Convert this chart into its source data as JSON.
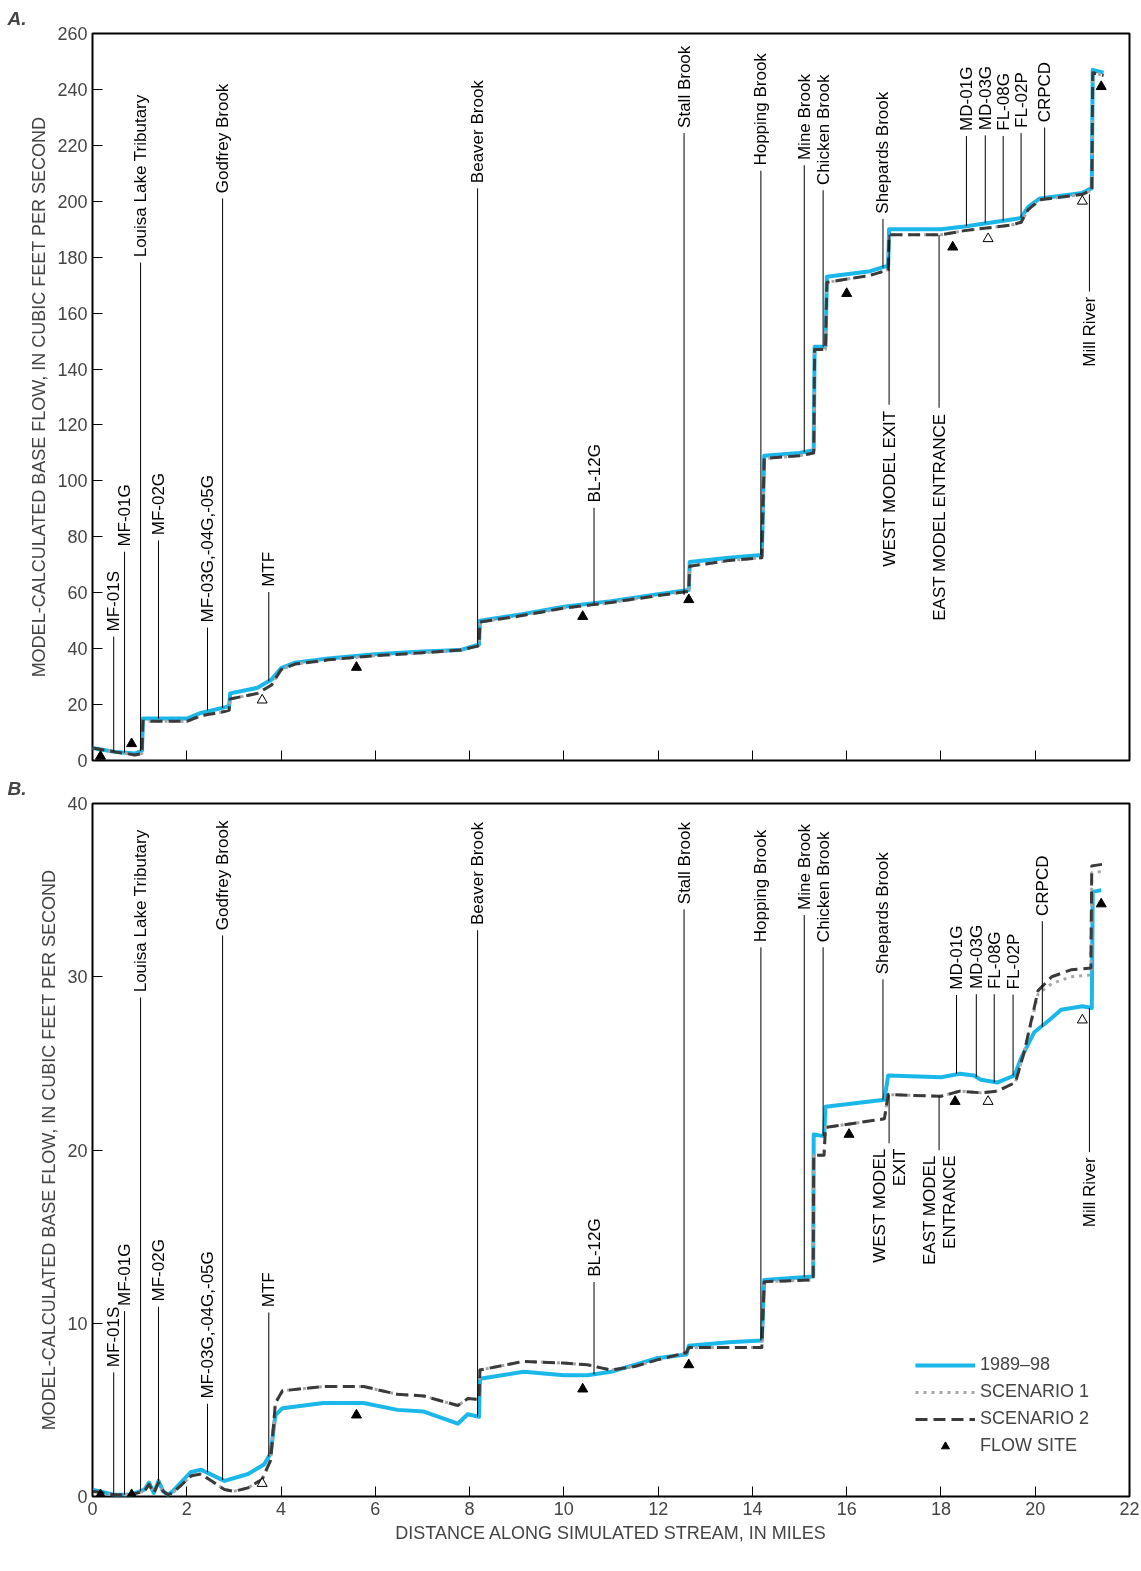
{
  "chart_data": [
    {
      "type": "line",
      "title": "A.",
      "ylabel": "MODEL-CALCULATED BASE FLOW, IN CUBIC FEET PER SECOND",
      "xlim": [
        0,
        22
      ],
      "xticks": [
        0,
        2,
        4,
        6,
        8,
        10,
        12,
        14,
        16,
        18,
        20,
        22
      ],
      "ylim": [
        0,
        260
      ],
      "yticks": [
        0,
        20,
        40,
        60,
        80,
        100,
        120,
        140,
        160,
        180,
        200,
        220,
        240,
        260
      ],
      "tick_labels": "y",
      "legend": false,
      "series": [
        {
          "color": "#1ab7ea",
          "line_style": "solid",
          "x": [
            0,
            0.5,
            0.9,
            1.05,
            1.07,
            2.0,
            2.3,
            2.8,
            2.9,
            2.92,
            3.5,
            3.8,
            4.0,
            4.3,
            5,
            6,
            7,
            7.8,
            8.2,
            8.22,
            9,
            10,
            11,
            12,
            12.65,
            12.67,
            13.5,
            14.2,
            14.25,
            15,
            15.3,
            15.32,
            15.55,
            15.58,
            16.5,
            16.88,
            16.9,
            18,
            18.5,
            19.5,
            19.7,
            19.85,
            20.1,
            21,
            21.2,
            21.22,
            21.45
          ],
          "values": [
            4.5,
            3,
            2.5,
            3.5,
            15,
            15,
            17,
            19,
            19.5,
            24,
            26,
            29,
            33,
            35,
            36.5,
            38,
            39,
            39.5,
            41.5,
            50,
            52,
            55,
            57,
            59.5,
            61,
            71,
            72.5,
            73.5,
            109,
            110,
            111,
            148,
            148,
            173,
            175,
            177,
            190,
            190,
            191,
            193.5,
            194,
            198,
            201,
            203,
            204.7,
            247,
            246
          ]
        },
        {
          "color": "#a6a6a6",
          "line_style": "dotted",
          "x": [
            0,
            0.5,
            0.9,
            1.05,
            1.07,
            2.0,
            2.3,
            2.8,
            2.9,
            2.92,
            3.5,
            3.8,
            4.0,
            4.3,
            5,
            6,
            7,
            7.8,
            8.2,
            8.22,
            9,
            10,
            11,
            12,
            12.65,
            12.67,
            13.5,
            14.2,
            14.25,
            15,
            15.3,
            15.32,
            15.55,
            15.58,
            16.5,
            16.88,
            16.9,
            18,
            18.5,
            19.5,
            19.7,
            19.85,
            20.1,
            21,
            21.2,
            21.22,
            21.45
          ],
          "values": [
            4.5,
            3,
            2.0,
            2.5,
            14,
            14,
            16,
            17.5,
            18,
            22,
            24,
            27,
            32.5,
            34.5,
            36,
            37.5,
            38.5,
            39.5,
            41,
            49.5,
            51.5,
            54.5,
            56.5,
            59,
            60.5,
            69.5,
            71.5,
            72.5,
            108,
            109,
            110,
            147,
            147,
            171,
            173.5,
            175.5,
            188,
            188,
            189.5,
            191.5,
            192.5,
            197,
            200.5,
            202.5,
            204,
            246,
            245
          ]
        },
        {
          "color": "#3a3a3a",
          "line_style": "dashed",
          "x": [
            0,
            0.5,
            0.9,
            1.05,
            1.07,
            2.0,
            2.3,
            2.8,
            2.9,
            2.92,
            3.5,
            3.8,
            4.0,
            4.3,
            5,
            6,
            7,
            7.8,
            8.2,
            8.22,
            9,
            10,
            11,
            12,
            12.65,
            12.67,
            13.5,
            14.2,
            14.25,
            15,
            15.3,
            15.32,
            15.55,
            15.58,
            16.5,
            16.88,
            16.9,
            18,
            18.5,
            19.5,
            19.7,
            19.85,
            20.1,
            21,
            21.2,
            21.22,
            21.45
          ],
          "values": [
            4.5,
            3,
            2.0,
            2.5,
            14,
            14,
            16,
            17.5,
            18,
            22,
            24,
            27,
            32.5,
            34.5,
            36,
            37.5,
            38.5,
            39.5,
            41,
            49.5,
            51.5,
            54.5,
            56.5,
            59,
            60.5,
            69.5,
            71.5,
            72.5,
            108,
            109,
            110,
            147,
            147,
            171,
            173.5,
            175.5,
            188,
            188,
            189.5,
            191.5,
            192.5,
            197,
            200.5,
            202.5,
            204,
            246,
            245
          ]
        },
        {
          "type": "scatter",
          "marker": "triangle",
          "colors": [
            "#000000",
            "#000000",
            "#ffffff",
            "#000000",
            "#000000",
            "#000000",
            "#000000",
            "#000000",
            "#ffffff",
            "#ffffff",
            "#000000"
          ],
          "x": [
            0.17,
            0.83,
            3.6,
            5.6,
            10.4,
            12.65,
            16.0,
            18.25,
            19.0,
            21.0,
            21.4
          ],
          "values": [
            1.5,
            6,
            21.6,
            33.3,
            51.5,
            57.5,
            167,
            183.6,
            186.6,
            200,
            241
          ]
        }
      ],
      "annotations": [
        {
          "text": "MF-01S",
          "x": 0.45,
          "y": 3.2
        },
        {
          "text": "MF-01G",
          "x": 0.68,
          "y": 2.8
        },
        {
          "text": "Louisa Lake Tributary",
          "x": 1.02,
          "y": 3.3
        },
        {
          "text": "MF-02G",
          "x": 1.4,
          "y": 15
        },
        {
          "text": "MF-03G,-04G,-05G",
          "x": 2.44,
          "y": 17.9
        },
        {
          "text": "Godfrey Brook",
          "x": 2.76,
          "y": 18.8
        },
        {
          "text": "MTF",
          "x": 3.74,
          "y": 28.4
        },
        {
          "text": "Beaver Brook",
          "x": 8.17,
          "y": 41.3
        },
        {
          "text": "BL-12G",
          "x": 10.64,
          "y": 56.3
        },
        {
          "text": "Stall Brook",
          "x": 12.55,
          "y": 59.2
        },
        {
          "text": "Hopping Brook",
          "x": 14.18,
          "y": 73.5
        },
        {
          "text": "Mine Brook",
          "x": 15.1,
          "y": 110.3
        },
        {
          "text": "Chicken Brook",
          "x": 15.5,
          "y": 148
        },
        {
          "text": "Shepards Brook",
          "x": 16.77,
          "y": 176.3
        },
        {
          "text": "MD-01G",
          "x": 18.54,
          "y": 191.1
        },
        {
          "text": "MD-03G",
          "x": 18.94,
          "y": 192.1
        },
        {
          "text": "FL-08G",
          "x": 19.32,
          "y": 193
        },
        {
          "text": "FL-02P",
          "x": 19.7,
          "y": 194
        },
        {
          "text": "CRPCD",
          "x": 20.2,
          "y": 201.2
        },
        {
          "text": "WEST MODEL EXIT",
          "x": 16.9,
          "y": 188
        },
        {
          "text": "EAST MODEL ENTRANCE",
          "x": 17.96,
          "y": 188
        },
        {
          "text": "Mill River",
          "x": 21.15,
          "y": 202.5
        }
      ]
    },
    {
      "type": "line",
      "title": "B.",
      "xlabel": "DISTANCE ALONG SIMULATED STREAM, IN MILES",
      "ylabel": "MODEL-CALCULATED BASE FLOW, IN CUBIC FEET PER SECOND",
      "xlim": [
        0,
        22
      ],
      "xticks": [
        0,
        2,
        4,
        6,
        8,
        10,
        12,
        14,
        16,
        18,
        20,
        22
      ],
      "ylim": [
        0,
        40
      ],
      "yticks": [
        0,
        10,
        20,
        30,
        40
      ],
      "legend": "bottom right",
      "series": [
        {
          "name": "1989–98",
          "color": "#1ab7ea",
          "line_style": "solid",
          "x": [
            0,
            0.45,
            0.8,
            1.1,
            1.2,
            1.3,
            1.4,
            1.5,
            1.6,
            1.7,
            2.08,
            2.3,
            2.8,
            3.3,
            3.64,
            3.78,
            3.88,
            4.03,
            4.9,
            5.75,
            6.47,
            7.03,
            7.75,
            7.96,
            8.2,
            8.22,
            9.15,
            10,
            10.5,
            11,
            11.5,
            12,
            12.6,
            12.65,
            13.5,
            14.2,
            14.25,
            15.29,
            15.3,
            15.52,
            15.55,
            16.8,
            16.88,
            18.0,
            18.4,
            18.7,
            18.85,
            19.2,
            19.56,
            19.7,
            19.98,
            20.3,
            20.55,
            21.0,
            21.2,
            21.22,
            21.4
          ],
          "values": [
            0.4,
            0.1,
            0.1,
            0.4,
            0.8,
            0.2,
            0.9,
            0.3,
            0.1,
            0.3,
            1.4,
            1.55,
            0.9,
            1.3,
            1.85,
            2.5,
            4.7,
            5.1,
            5.4,
            5.4,
            5.0,
            4.9,
            4.2,
            4.75,
            4.6,
            6.8,
            7.2,
            7.0,
            7.0,
            7.2,
            7.6,
            8.0,
            8.2,
            8.7,
            8.9,
            9.0,
            12.5,
            12.7,
            20.9,
            20.8,
            22.5,
            22.9,
            24.3,
            24.2,
            24.4,
            24.3,
            24.05,
            23.9,
            24.3,
            25.3,
            26.8,
            27.5,
            28.1,
            28.3,
            28.2,
            34.9,
            35.0
          ]
        },
        {
          "name": "SCENARIO 1",
          "color": "#a6a6a6",
          "line_style": "dotted",
          "x": [
            0,
            0.45,
            0.8,
            1.1,
            1.2,
            1.3,
            1.4,
            1.5,
            1.6,
            1.7,
            2.1,
            2.3,
            2.8,
            3.0,
            3.3,
            3.6,
            3.78,
            3.88,
            4.03,
            4.9,
            5.75,
            6.47,
            7.03,
            7.75,
            7.96,
            8.2,
            8.22,
            9.15,
            10,
            10.5,
            11,
            11.5,
            12,
            12.6,
            12.65,
            13.5,
            14.2,
            14.25,
            15.29,
            15.3,
            15.52,
            15.55,
            16.8,
            16.88,
            18.0,
            18.4,
            18.85,
            19.2,
            19.58,
            19.77,
            20.06,
            20.35,
            20.76,
            21.18,
            21.2,
            21.45
          ],
          "values": [
            0.3,
            0.1,
            0.1,
            0.3,
            0.7,
            0.2,
            0.8,
            0.3,
            0.1,
            0.2,
            1.2,
            1.3,
            0.4,
            0.3,
            0.5,
            1.0,
            2.1,
            5.4,
            6.1,
            6.35,
            6.35,
            5.9,
            5.8,
            5.25,
            5.65,
            5.6,
            7.3,
            7.8,
            7.7,
            7.6,
            7.3,
            7.5,
            7.9,
            8.3,
            8.6,
            8.6,
            8.6,
            12.4,
            12.5,
            19.7,
            19.7,
            21.3,
            21.8,
            23.2,
            23.1,
            23.4,
            23.3,
            23.4,
            23.9,
            25.7,
            29.0,
            29.6,
            30.0,
            30.1,
            36.0,
            36.1
          ]
        },
        {
          "name": "SCENARIO 2",
          "color": "#3a3a3a",
          "line_style": "dashed",
          "x": [
            0,
            0.45,
            0.8,
            1.1,
            1.2,
            1.3,
            1.4,
            1.5,
            1.6,
            1.7,
            2.1,
            2.3,
            2.8,
            3.0,
            3.3,
            3.6,
            3.78,
            3.88,
            4.03,
            4.9,
            5.75,
            6.47,
            7.03,
            7.75,
            7.96,
            8.2,
            8.22,
            9.15,
            10,
            10.5,
            11,
            11.5,
            12,
            12.6,
            12.65,
            13.5,
            14.2,
            14.25,
            15.29,
            15.3,
            15.52,
            15.55,
            16.8,
            16.88,
            18.0,
            18.4,
            18.85,
            19.2,
            19.58,
            19.77,
            20.06,
            20.35,
            20.76,
            21.18,
            21.2,
            21.45
          ],
          "values": [
            0.3,
            0.1,
            0.1,
            0.3,
            0.7,
            0.2,
            0.8,
            0.3,
            0.1,
            0.2,
            1.2,
            1.3,
            0.4,
            0.3,
            0.5,
            1.0,
            2.1,
            5.4,
            6.1,
            6.35,
            6.35,
            5.9,
            5.8,
            5.25,
            5.65,
            5.6,
            7.3,
            7.8,
            7.7,
            7.6,
            7.3,
            7.5,
            7.9,
            8.3,
            8.6,
            8.6,
            8.6,
            12.4,
            12.5,
            19.7,
            19.7,
            21.3,
            21.8,
            23.2,
            23.1,
            23.4,
            23.3,
            23.4,
            23.9,
            25.7,
            29.2,
            30.0,
            30.4,
            30.5,
            36.4,
            36.5
          ]
        },
        {
          "name": "FLOW SITE",
          "type": "scatter",
          "marker": "triangle",
          "colors": [
            "#000000",
            "#000000",
            "#ffffff",
            "#000000",
            "#000000",
            "#000000",
            "#000000",
            "#000000",
            "#ffffff",
            "#ffffff",
            "#000000"
          ],
          "x": [
            0.17,
            0.83,
            3.6,
            5.6,
            10.4,
            12.65,
            16.05,
            18.3,
            19.0,
            21.0,
            21.4
          ],
          "values": [
            0.1,
            0.1,
            0.75,
            4.7,
            6.2,
            7.6,
            20.9,
            22.8,
            22.8,
            27.5,
            34.2
          ]
        }
      ],
      "annotations": [
        {
          "text": "MF-01S",
          "x": 0.45,
          "y": 0.1
        },
        {
          "text": "MF-01G",
          "x": 0.68,
          "y": 0.1
        },
        {
          "text": "Louisa Lake Tributary",
          "x": 1.02,
          "y": 0.3
        },
        {
          "text": "MF-02G",
          "x": 1.4,
          "y": 0.9
        },
        {
          "text": "MF-03G,-04G,-05G",
          "x": 2.44,
          "y": 1.4
        },
        {
          "text": "Godfrey Brook",
          "x": 2.76,
          "y": 0.95
        },
        {
          "text": "MTF",
          "x": 3.74,
          "y": 2.3
        },
        {
          "text": "Beaver Brook",
          "x": 8.17,
          "y": 4.6
        },
        {
          "text": "BL-12G",
          "x": 10.64,
          "y": 7.05
        },
        {
          "text": "Stall Brook",
          "x": 12.55,
          "y": 8.2
        },
        {
          "text": "Hopping Brook",
          "x": 14.18,
          "y": 9.0
        },
        {
          "text": "Mine Brook",
          "x": 15.1,
          "y": 12.66
        },
        {
          "text": "Chicken Brook",
          "x": 15.5,
          "y": 20.8
        },
        {
          "text": "Shepards Brook",
          "x": 16.77,
          "y": 22.9
        },
        {
          "text": "MD-01G",
          "x": 18.33,
          "y": 24.4
        },
        {
          "text": "MD-03G",
          "x": 18.75,
          "y": 24.2
        },
        {
          "text": "FL-08G",
          "x": 19.13,
          "y": 23.9
        },
        {
          "text": "FL-02P",
          "x": 19.53,
          "y": 24.3
        },
        {
          "text": "CRPCD",
          "x": 20.15,
          "y": 27.1
        },
        {
          "text": "WEST MODEL\nEXIT",
          "x": 16.9,
          "y": 23.2
        },
        {
          "text": "EAST MODEL\nENTRANCE",
          "x": 17.96,
          "y": 23.1
        },
        {
          "text": "Mill River",
          "x": 21.15,
          "y": 28.2
        }
      ]
    }
  ]
}
